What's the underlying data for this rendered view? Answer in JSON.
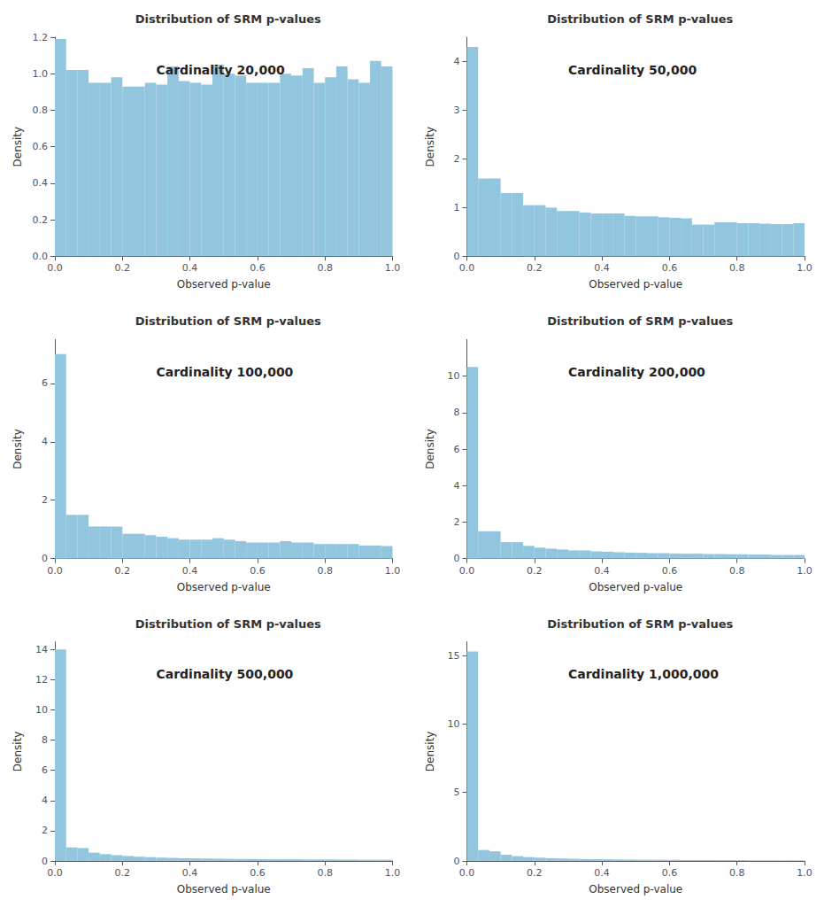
{
  "chart_data": [
    {
      "type": "histogram",
      "title": "Distribution of SRM p-values",
      "xlabel": "Observed p-value",
      "ylabel": "Density",
      "annotation": "Cardinality 20,000",
      "color": "#92C5DE",
      "grid": false,
      "bins": [
        0,
        0.03333333333333333,
        0.06666666666666667,
        0.1,
        0.13333333333333333,
        0.16666666666666666,
        0.2,
        0.23333333333333334,
        0.26666666666666666,
        0.3,
        0.3333333333333333,
        0.36666666666666664,
        0.4,
        0.43333333333333335,
        0.4666666666666667,
        0.5,
        0.5333333333333333,
        0.5666666666666667,
        0.6,
        0.6333333333333333,
        0.6666666666666666,
        0.7,
        0.7333333333333333,
        0.7666666666666667,
        0.8,
        0.8333333333333334,
        0.8666666666666667,
        0.9,
        0.9333333333333333,
        0.9666666666666667,
        1
      ],
      "values": [
        1.19,
        1.02,
        1.02,
        0.95,
        0.95,
        0.98,
        0.93,
        0.93,
        0.95,
        0.94,
        1.04,
        0.96,
        0.95,
        0.94,
        1.05,
        1.0,
        0.99,
        0.95,
        0.95,
        0.95,
        1.0,
        0.99,
        1.03,
        0.95,
        0.98,
        1.04,
        0.97,
        0.95,
        1.07,
        1.04
      ],
      "xlim": [
        0,
        1.0
      ],
      "xticks": [
        {
          "value": 0,
          "label": "0.0"
        },
        0.2,
        0.4,
        0.6,
        0.8,
        {
          "value": 1,
          "label": "1.0"
        }
      ],
      "ylim": [
        0,
        1.2
      ],
      "yticks": [
        {
          "value": 0,
          "label": "0.0"
        },
        0.2,
        0.4,
        0.6,
        0.8,
        {
          "value": 1,
          "label": "1.0"
        },
        1.2
      ]
    },
    {
      "type": "histogram",
      "title": "Distribution of SRM p-values",
      "xlabel": "Observed p-value",
      "ylabel": "Density",
      "annotation": "Cardinality 50,000",
      "color": "#92C5DE",
      "grid": false,
      "bins": [
        0,
        0.03333333333333333,
        0.06666666666666667,
        0.1,
        0.13333333333333333,
        0.16666666666666666,
        0.2,
        0.23333333333333334,
        0.26666666666666666,
        0.3,
        0.3333333333333333,
        0.36666666666666664,
        0.4,
        0.43333333333333335,
        0.4666666666666667,
        0.5,
        0.5333333333333333,
        0.5666666666666667,
        0.6,
        0.6333333333333333,
        0.6666666666666666,
        0.7,
        0.7333333333333333,
        0.7666666666666667,
        0.8,
        0.8333333333333334,
        0.8666666666666667,
        0.9,
        0.9333333333333333,
        0.9666666666666667,
        1
      ],
      "values": [
        4.3,
        1.6,
        1.6,
        1.3,
        1.3,
        1.05,
        1.05,
        1.0,
        0.93,
        0.93,
        0.9,
        0.88,
        0.88,
        0.88,
        0.83,
        0.82,
        0.82,
        0.8,
        0.79,
        0.78,
        0.65,
        0.65,
        0.7,
        0.7,
        0.68,
        0.68,
        0.67,
        0.66,
        0.66,
        0.68
      ],
      "xlim": [
        0,
        1.0
      ],
      "xticks": [
        {
          "value": 0,
          "label": "0.0"
        },
        0.2,
        0.4,
        0.6,
        0.8,
        {
          "value": 1,
          "label": "1.0"
        }
      ],
      "ylim": [
        0,
        4.5
      ],
      "yticks": [
        0,
        1,
        2,
        3,
        4
      ]
    },
    {
      "type": "histogram",
      "title": "Distribution of SRM p-values",
      "xlabel": "Observed p-value",
      "ylabel": "Density",
      "annotation": "Cardinality 100,000",
      "color": "#92C5DE",
      "grid": false,
      "bins": [
        0,
        0.03333333333333333,
        0.06666666666666667,
        0.1,
        0.13333333333333333,
        0.16666666666666666,
        0.2,
        0.23333333333333334,
        0.26666666666666666,
        0.3,
        0.3333333333333333,
        0.36666666666666664,
        0.4,
        0.43333333333333335,
        0.4666666666666667,
        0.5,
        0.5333333333333333,
        0.5666666666666667,
        0.6,
        0.6333333333333333,
        0.6666666666666666,
        0.7,
        0.7333333333333333,
        0.7666666666666667,
        0.8,
        0.8333333333333334,
        0.8666666666666667,
        0.9,
        0.9333333333333333,
        0.9666666666666667,
        1
      ],
      "values": [
        7.0,
        1.5,
        1.5,
        1.1,
        1.1,
        1.1,
        0.85,
        0.85,
        0.8,
        0.75,
        0.7,
        0.65,
        0.65,
        0.65,
        0.7,
        0.65,
        0.6,
        0.55,
        0.55,
        0.55,
        0.6,
        0.55,
        0.55,
        0.5,
        0.5,
        0.5,
        0.5,
        0.45,
        0.45,
        0.43
      ],
      "xlim": [
        0,
        1.0
      ],
      "xticks": [
        {
          "value": 0,
          "label": "0.0"
        },
        0.2,
        0.4,
        0.6,
        0.8,
        {
          "value": 1,
          "label": "1.0"
        }
      ],
      "ylim": [
        0,
        7.5
      ],
      "yticks": [
        0,
        2,
        4,
        6
      ]
    },
    {
      "type": "histogram",
      "title": "Distribution of SRM p-values",
      "xlabel": "Observed p-value",
      "ylabel": "Density",
      "annotation": "Cardinality 200,000",
      "color": "#92C5DE",
      "grid": false,
      "bins": [
        0,
        0.03333333333333333,
        0.06666666666666667,
        0.1,
        0.13333333333333333,
        0.16666666666666666,
        0.2,
        0.23333333333333334,
        0.26666666666666666,
        0.3,
        0.3333333333333333,
        0.36666666666666664,
        0.4,
        0.43333333333333335,
        0.4666666666666667,
        0.5,
        0.5333333333333333,
        0.5666666666666667,
        0.6,
        0.6333333333333333,
        0.6666666666666666,
        0.7,
        0.7333333333333333,
        0.7666666666666667,
        0.8,
        0.8333333333333334,
        0.8666666666666667,
        0.9,
        0.9333333333333333,
        0.9666666666666667,
        1
      ],
      "values": [
        10.5,
        1.5,
        1.5,
        0.9,
        0.9,
        0.7,
        0.6,
        0.55,
        0.5,
        0.45,
        0.45,
        0.4,
        0.38,
        0.35,
        0.33,
        0.32,
        0.3,
        0.3,
        0.28,
        0.27,
        0.27,
        0.25,
        0.25,
        0.24,
        0.24,
        0.22,
        0.22,
        0.2,
        0.2,
        0.2
      ],
      "xlim": [
        0,
        1.0
      ],
      "xticks": [
        {
          "value": 0,
          "label": "0.0"
        },
        0.2,
        0.4,
        0.6,
        0.8,
        {
          "value": 1,
          "label": "1.0"
        }
      ],
      "ylim": [
        0,
        12
      ],
      "yticks": [
        0,
        2,
        4,
        6,
        8,
        10
      ]
    },
    {
      "type": "histogram",
      "title": "Distribution of SRM p-values",
      "xlabel": "Observed p-value",
      "ylabel": "Density",
      "annotation": "Cardinality 500,000",
      "color": "#92C5DE",
      "grid": false,
      "bins": [
        0,
        0.03333333333333333,
        0.06666666666666667,
        0.1,
        0.13333333333333333,
        0.16666666666666666,
        0.2,
        0.23333333333333334,
        0.26666666666666666,
        0.3,
        0.3333333333333333,
        0.36666666666666664,
        0.4,
        0.43333333333333335,
        0.4666666666666667,
        0.5,
        0.5333333333333333,
        0.5666666666666667,
        0.6,
        0.6333333333333333,
        0.6666666666666666,
        0.7,
        0.7333333333333333,
        0.7666666666666667,
        0.8,
        0.8333333333333334,
        0.8666666666666667,
        0.9,
        0.9333333333333333,
        0.9666666666666667,
        1
      ],
      "values": [
        14.0,
        0.9,
        0.85,
        0.55,
        0.45,
        0.38,
        0.33,
        0.28,
        0.25,
        0.22,
        0.2,
        0.18,
        0.17,
        0.16,
        0.15,
        0.14,
        0.13,
        0.13,
        0.12,
        0.11,
        0.11,
        0.11,
        0.1,
        0.1,
        0.1,
        0.09,
        0.09,
        0.08,
        0.08,
        0.08
      ],
      "xlim": [
        0,
        1.0
      ],
      "xticks": [
        {
          "value": 0,
          "label": "0.0"
        },
        0.2,
        0.4,
        0.6,
        0.8,
        {
          "value": 1,
          "label": "1.0"
        }
      ],
      "ylim": [
        0,
        14.5
      ],
      "yticks": [
        0,
        2,
        4,
        6,
        8,
        10,
        12,
        14
      ]
    },
    {
      "type": "histogram",
      "title": "Distribution of SRM p-values",
      "xlabel": "Observed p-value",
      "ylabel": "Density",
      "annotation": "Cardinality 1,000,000",
      "color": "#92C5DE",
      "grid": false,
      "bins": [
        0,
        0.03333333333333333,
        0.06666666666666667,
        0.1,
        0.13333333333333333,
        0.16666666666666666,
        0.2,
        0.23333333333333334,
        0.26666666666666666,
        0.3,
        0.3333333333333333,
        0.36666666666666664,
        0.4,
        0.43333333333333335,
        0.4666666666666667,
        0.5,
        0.5333333333333333,
        0.5666666666666667,
        0.6,
        0.6333333333333333,
        0.6666666666666666,
        0.7,
        0.7333333333333333,
        0.7666666666666667,
        0.8,
        0.8333333333333334,
        0.8666666666666667,
        0.9,
        0.9333333333333333,
        0.9666666666666667,
        1
      ],
      "values": [
        15.3,
        0.8,
        0.7,
        0.45,
        0.35,
        0.28,
        0.24,
        0.2,
        0.18,
        0.16,
        0.14,
        0.13,
        0.12,
        0.11,
        0.1,
        0.09,
        0.09,
        0.08,
        0.08,
        0.07,
        0.07,
        0.07,
        0.06,
        0.06,
        0.06,
        0.05,
        0.05,
        0.05,
        0.05,
        0.05
      ],
      "xlim": [
        0,
        1.0
      ],
      "xticks": [
        {
          "value": 0,
          "label": "0.0"
        },
        0.2,
        0.4,
        0.6,
        0.8,
        {
          "value": 1,
          "label": "1.0"
        }
      ],
      "ylim": [
        0,
        16
      ],
      "yticks": [
        0,
        5,
        10,
        15
      ]
    }
  ]
}
